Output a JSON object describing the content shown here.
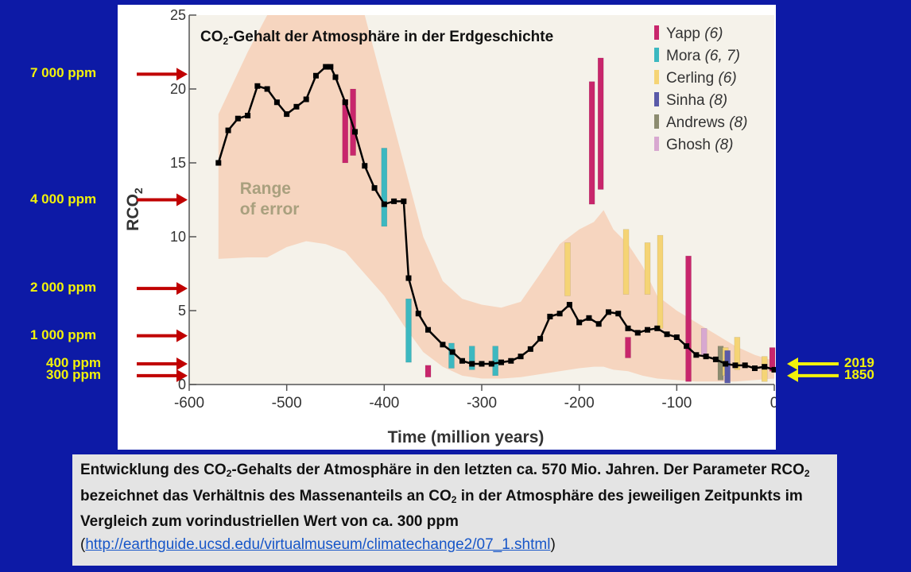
{
  "slide": {
    "background": "#0d1aa6"
  },
  "chart_data": {
    "type": "line",
    "title_main": "CO",
    "title_sub": "2",
    "title_rest": "-Gehalt der Atmosphäre in der Erdgeschichte",
    "xlabel": "Time (million years)",
    "ylabel": "RCO",
    "ylabel_sub": "2",
    "xlim": [
      -600,
      0
    ],
    "ylim": [
      0,
      25
    ],
    "x_ticks": [
      -600,
      -500,
      -400,
      -300,
      -200,
      -100,
      0
    ],
    "x_tick_labels": [
      "-600",
      "-500",
      "-400",
      "-300",
      "-200",
      "-100",
      "0"
    ],
    "y_ticks": [
      0,
      5,
      10,
      15,
      20,
      25
    ],
    "y_tick_labels": [
      "0",
      "5",
      "10",
      "15",
      "20",
      "25"
    ],
    "grid": false,
    "legend_position": "top-right",
    "range_label_1": "Range",
    "range_label_2": "of error",
    "range_color": "#f6d5bf",
    "line_color": "#000000",
    "series_line": {
      "x": [
        -570,
        -560,
        -550,
        -540,
        -530,
        -520,
        -510,
        -500,
        -490,
        -480,
        -470,
        -460,
        -455,
        -450,
        -440,
        -430,
        -420,
        -410,
        -400,
        -390,
        -380,
        -375,
        -365,
        -355,
        -340,
        -330,
        -320,
        -310,
        -300,
        -290,
        -280,
        -270,
        -260,
        -250,
        -240,
        -230,
        -220,
        -210,
        -200,
        -190,
        -180,
        -170,
        -160,
        -150,
        -140,
        -130,
        -120,
        -110,
        -100,
        -90,
        -80,
        -70,
        -60,
        -50,
        -40,
        -30,
        -20,
        -10,
        0
      ],
      "y": [
        15,
        17.2,
        18,
        18.2,
        20.2,
        20,
        19.1,
        18.3,
        18.8,
        19.3,
        20.9,
        21.5,
        21.5,
        20.8,
        19.1,
        17.1,
        14.8,
        13.3,
        12.2,
        12.4,
        12.4,
        7.2,
        4.8,
        3.7,
        2.7,
        2.2,
        1.6,
        1.4,
        1.4,
        1.4,
        1.5,
        1.6,
        1.9,
        2.4,
        3.1,
        4.6,
        4.8,
        5.4,
        4.2,
        4.5,
        4.1,
        4.9,
        4.8,
        3.8,
        3.5,
        3.7,
        3.8,
        3.4,
        3.2,
        2.6,
        2,
        1.9,
        1.7,
        1.4,
        1.3,
        1.3,
        1.1,
        1.2,
        1
      ]
    },
    "range_upper": {
      "x": [
        -570,
        -540,
        -520,
        -500,
        -480,
        -460,
        -440,
        -420,
        -400,
        -380,
        -360,
        -340,
        -320,
        -300,
        -280,
        -260,
        -240,
        -220,
        -200,
        -185,
        -175,
        -165,
        -150,
        -135,
        -120,
        -100,
        -80,
        -60,
        -40,
        -20,
        0
      ],
      "y": [
        18.3,
        22.5,
        25,
        25,
        25,
        25,
        25,
        25,
        20,
        15,
        10,
        7,
        5.8,
        5.4,
        5.2,
        5.6,
        7.5,
        9.5,
        10.5,
        11,
        11.8,
        10.5,
        9.5,
        8,
        6,
        5,
        4.2,
        3.4,
        2.6,
        2,
        1.6
      ]
    },
    "range_lower": {
      "x": [
        -570,
        -540,
        -520,
        -500,
        -480,
        -460,
        -440,
        -420,
        -400,
        -380,
        -360,
        -340,
        -320,
        -300,
        -280,
        -260,
        -240,
        -220,
        -200,
        -185,
        -175,
        -165,
        -150,
        -135,
        -120,
        -100,
        -80,
        -60,
        -40,
        -20,
        0
      ],
      "y": [
        8.5,
        8.6,
        8.6,
        9.3,
        9.7,
        9.5,
        9,
        7.5,
        6,
        4,
        2.2,
        1.2,
        0.6,
        0.4,
        0.4,
        0.5,
        0.7,
        0.9,
        1.1,
        1.2,
        1.2,
        1,
        0.9,
        0.6,
        0.4,
        0.3,
        0.2,
        0.2,
        0.2,
        0.3,
        0.4
      ]
    },
    "proxy_bars": [
      {
        "source": "Yapp",
        "x": -440,
        "ymin": 15.0,
        "ymax": 19.3
      },
      {
        "source": "Yapp",
        "x": -432,
        "ymin": 15.5,
        "ymax": 20.0
      },
      {
        "source": "Mora",
        "x": -400,
        "ymin": 10.7,
        "ymax": 16.0
      },
      {
        "source": "Mora",
        "x": -375,
        "ymin": 1.5,
        "ymax": 5.8
      },
      {
        "source": "Yapp",
        "x": -355,
        "ymin": 0.5,
        "ymax": 1.3
      },
      {
        "source": "Mora",
        "x": -331,
        "ymin": 1.1,
        "ymax": 2.8
      },
      {
        "source": "Mora",
        "x": -310,
        "ymin": 1.0,
        "ymax": 2.6
      },
      {
        "source": "Mora",
        "x": -286,
        "ymin": 0.6,
        "ymax": 2.6
      },
      {
        "source": "Cerling",
        "x": -212,
        "ymin": 6.0,
        "ymax": 9.6
      },
      {
        "source": "Yapp",
        "x": -187,
        "ymin": 12.2,
        "ymax": 20.5
      },
      {
        "source": "Yapp",
        "x": -178,
        "ymin": 13.2,
        "ymax": 22.1
      },
      {
        "source": "Cerling",
        "x": -152,
        "ymin": 6.1,
        "ymax": 10.5
      },
      {
        "source": "Yapp",
        "x": -150,
        "ymin": 1.8,
        "ymax": 3.2
      },
      {
        "source": "Cerling",
        "x": -130,
        "ymin": 6.1,
        "ymax": 9.6
      },
      {
        "source": "Cerling",
        "x": -117,
        "ymin": 3.8,
        "ymax": 10.1
      },
      {
        "source": "Yapp",
        "x": -88,
        "ymin": 0.2,
        "ymax": 8.7
      },
      {
        "source": "Ghosh",
        "x": -72,
        "ymin": 2.0,
        "ymax": 3.8
      },
      {
        "source": "Andrews",
        "x": -55,
        "ymin": 0.3,
        "ymax": 2.6
      },
      {
        "source": "Cerling",
        "x": -50,
        "ymin": 0.6,
        "ymax": 2.5
      },
      {
        "source": "Sinha",
        "x": -48,
        "ymin": 0.1,
        "ymax": 2.3
      },
      {
        "source": "Cerling",
        "x": -38,
        "ymin": 1.0,
        "ymax": 3.2
      },
      {
        "source": "Cerling",
        "x": -10,
        "ymin": 0.2,
        "ymax": 1.9
      },
      {
        "source": "Yapp",
        "x": -2,
        "ymin": 0.9,
        "ymax": 2.5
      }
    ],
    "legend": [
      {
        "key": "Yapp",
        "label": "Yapp",
        "ref": "(6)",
        "color": "#c8266c"
      },
      {
        "key": "Mora",
        "label": "Mora",
        "ref": "(6, 7)",
        "color": "#3cb8c0"
      },
      {
        "key": "Cerling",
        "label": "Cerling",
        "ref": "(6)",
        "color": "#f5d475"
      },
      {
        "key": "Sinha",
        "label": "Sinha",
        "ref": "(8)",
        "color": "#5a5aa8"
      },
      {
        "key": "Andrews",
        "label": "Andrews",
        "ref": "(8)",
        "color": "#8c8c70"
      },
      {
        "key": "Ghosh",
        "label": "Ghosh",
        "ref": "(8)",
        "color": "#d8a8d0"
      }
    ]
  },
  "annotations": {
    "ppm_labels": [
      {
        "text": "7 000 ppm",
        "level": 21
      },
      {
        "text": "4 000 ppm",
        "level": 12.5
      },
      {
        "text": "2 000 ppm",
        "level": 6.5
      },
      {
        "text": "1 000 ppm",
        "level": 3.3
      },
      {
        "text": "400 ppm",
        "level": 1.4
      },
      {
        "text": "300 ppm",
        "level": 0.6
      }
    ],
    "arrow_left_color": "#c00000",
    "year_labels": [
      {
        "text": "2019",
        "level": 1.4
      },
      {
        "text": "1850",
        "level": 0.6
      }
    ],
    "arrow_right_color": "#f2f20a"
  },
  "caption": {
    "part1": "Entwicklung des CO",
    "sub1": "2",
    "part2": "-Gehalts der Atmosphäre in den letzten ca. 570 Mio. Jahren. Der Parameter RCO",
    "sub2": "2",
    "part3": " bezeichnet das Verhältnis des Massenanteils an CO",
    "sub3": "2",
    "part4": " in der Atmosphäre des jeweiligen Zeitpunkts im Vergleich zum vorindustriellen Wert von ca. 300 ppm",
    "open_paren": " (",
    "link_text": "http://earthguide.ucsd.edu/virtualmuseum/climatechange2/07_1.shtml",
    "close_paren": ")"
  }
}
